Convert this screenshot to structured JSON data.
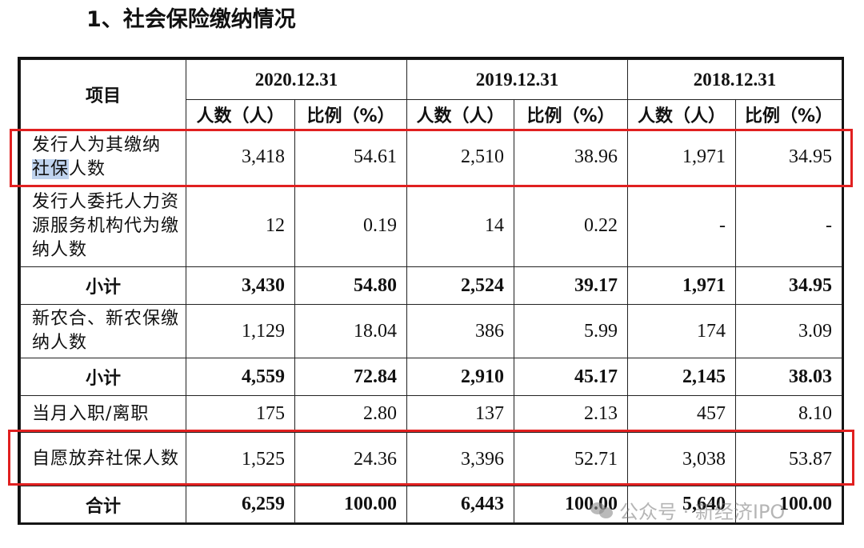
{
  "heading": "1、社会保险缴纳情况",
  "table": {
    "item_header": "项目",
    "years": [
      "2020.12.31",
      "2019.12.31",
      "2018.12.31"
    ],
    "sub_headers": [
      "人数（人）",
      "比例（%）"
    ],
    "rows": [
      {
        "label_parts": [
          "发行人为其缴纳",
          "社保",
          "人数"
        ],
        "values": [
          "3,418",
          "54.61",
          "2,510",
          "38.96",
          "1,971",
          "34.95"
        ]
      },
      {
        "label": "发行人委托人力资源服务机构代为缴纳人数",
        "values": [
          "12",
          "0.19",
          "14",
          "0.22",
          "-",
          "-"
        ]
      },
      {
        "label": "小计",
        "values": [
          "3,430",
          "54.80",
          "2,524",
          "39.17",
          "1,971",
          "34.95"
        ]
      },
      {
        "label": "新农合、新农保缴纳人数",
        "values": [
          "1,129",
          "18.04",
          "386",
          "5.99",
          "174",
          "3.09"
        ]
      },
      {
        "label": "小计",
        "values": [
          "4,559",
          "72.84",
          "2,910",
          "45.17",
          "2,145",
          "38.03"
        ]
      },
      {
        "label": "当月入职/离职",
        "values": [
          "175",
          "2.80",
          "137",
          "2.13",
          "457",
          "8.10"
        ]
      },
      {
        "label": "自愿放弃社保人数",
        "values": [
          "1,525",
          "24.36",
          "3,396",
          "52.71",
          "3,038",
          "53.87"
        ]
      },
      {
        "label": "合计",
        "values": [
          "6,259",
          "100.00",
          "6,443",
          "100.00",
          "5,640",
          "100.00"
        ]
      }
    ]
  },
  "highlight_color": "#e02020",
  "watermark": {
    "text": "公众号 · 新经济IPO",
    "icon": "wechat-icon"
  }
}
